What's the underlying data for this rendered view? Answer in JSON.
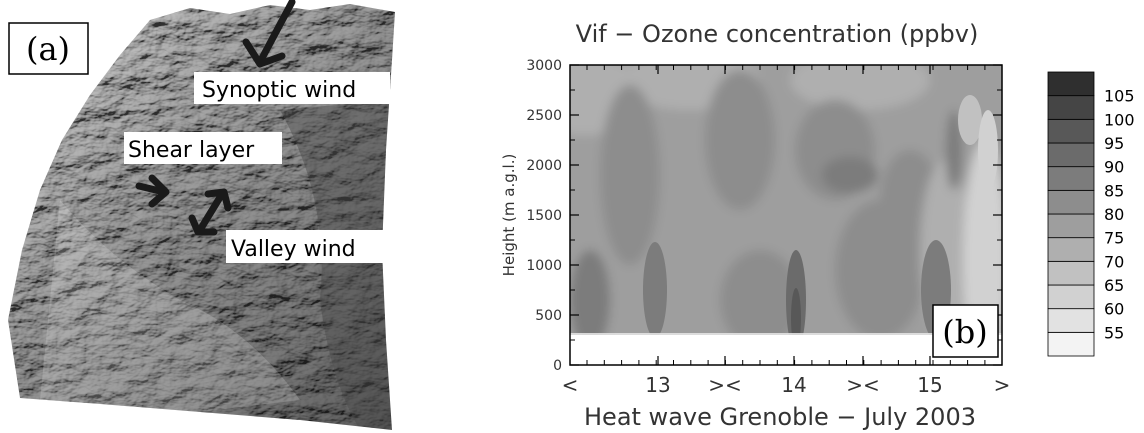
{
  "panel_a": {
    "label": "(a)",
    "annotations": {
      "synoptic": "Synoptic wind",
      "shear": "Shear layer",
      "valley": "Valley wind"
    }
  },
  "panel_b": {
    "label": "(b)"
  },
  "chart_data": {
    "type": "heatmap",
    "title": "Vif − Ozone concentration (ppbv)",
    "xlabel": "Heat wave Grenoble − July 2003",
    "ylabel": "Height (m a.g.l.)",
    "x_ticks": [
      "<",
      "13",
      "><",
      "14",
      "><",
      "15",
      ">"
    ],
    "y_ticks": [
      0,
      500,
      1000,
      1500,
      2000,
      2500,
      3000
    ],
    "ylim": [
      0,
      3000
    ],
    "colorbar": {
      "levels": [
        55,
        60,
        65,
        70,
        75,
        80,
        85,
        90,
        95,
        100,
        105
      ],
      "colors": [
        "#f3f3f3",
        "#e2e2e2",
        "#d1d1d1",
        "#c1c1c1",
        "#afafaf",
        "#9e9e9e",
        "#8d8d8d",
        "#7c7c7c",
        "#6b6b6b",
        "#585858",
        "#454545",
        "#2f2f2f"
      ]
    },
    "grid": false
  }
}
